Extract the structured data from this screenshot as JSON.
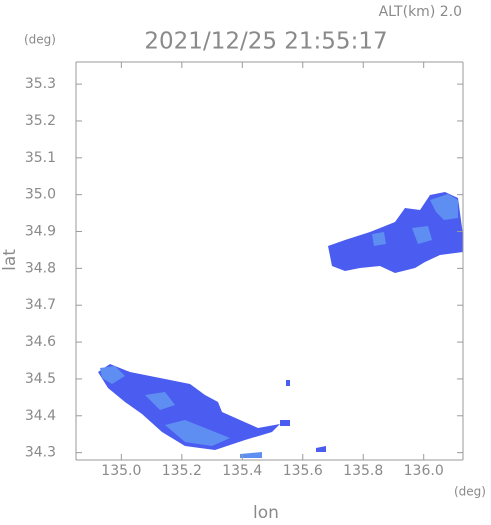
{
  "chart_data": {
    "type": "map",
    "title": "2021/12/25 21:55:17",
    "subtitle": "ALT(km) 2.0",
    "x_label": "lon",
    "y_label": "lat",
    "x_unit": "(deg)",
    "y_unit": "(deg)",
    "xlim": [
      134.85,
      136.13
    ],
    "ylim": [
      34.28,
      35.36
    ],
    "xticks": [
      {
        "value": 135,
        "label": "135.0"
      },
      135.2,
      {
        "value": 135.4,
        "label": "135.4"
      },
      135.6,
      135.8,
      {
        "value": 136,
        "label": "136.0"
      }
    ],
    "yticks": [
      34.3,
      34.4,
      34.5,
      34.6,
      34.7,
      34.8,
      34.9,
      {
        "value": 35,
        "label": "35.0"
      },
      35.1,
      35.2,
      35.3
    ]
  }
}
